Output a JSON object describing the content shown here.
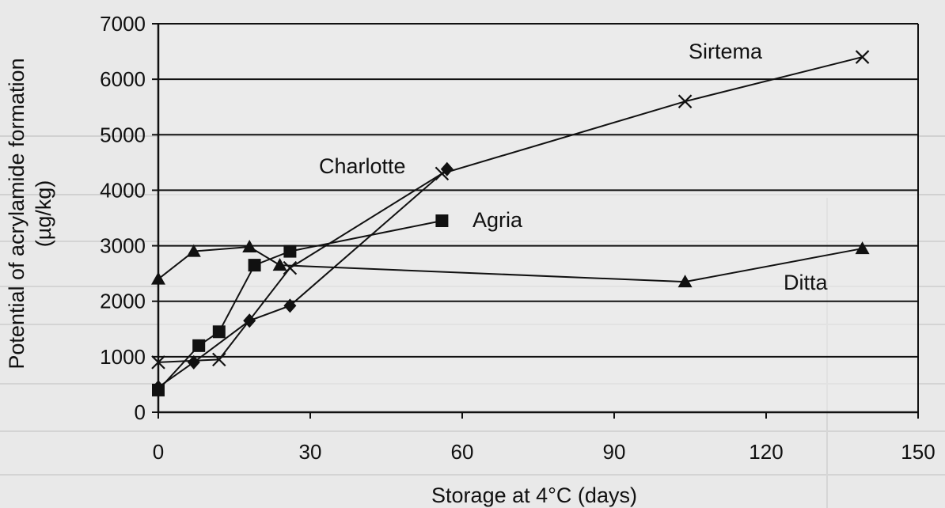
{
  "chart_data": {
    "type": "line",
    "xlabel": "Storage at 4°C (days)",
    "ylabel_line1": "Potential of acrylamide formation",
    "ylabel_line2": "(µg/kg)",
    "xlim": [
      0,
      150
    ],
    "ylim": [
      0,
      7000
    ],
    "xticks": [
      0,
      30,
      60,
      90,
      120,
      150
    ],
    "yticks": [
      0,
      1000,
      2000,
      3000,
      4000,
      5000,
      6000,
      7000
    ],
    "grid": "horizontal",
    "series": [
      {
        "name": "Sirtema",
        "marker": "x",
        "x": [
          0,
          12,
          26,
          56,
          104,
          139
        ],
        "y": [
          900,
          950,
          2600,
          4300,
          5600,
          6400
        ]
      },
      {
        "name": "Charlotte",
        "marker": "diamond",
        "x": [
          0,
          7,
          18,
          26,
          57
        ],
        "y": [
          450,
          900,
          1650,
          1920,
          4380
        ]
      },
      {
        "name": "Agria",
        "marker": "square",
        "x": [
          0,
          8,
          12,
          19,
          26,
          56
        ],
        "y": [
          400,
          1200,
          1450,
          2650,
          2900,
          3450
        ]
      },
      {
        "name": "Ditta",
        "marker": "triangle",
        "x": [
          0,
          7,
          18,
          24,
          104,
          139
        ],
        "y": [
          2400,
          2900,
          2980,
          2650,
          2350,
          2950
        ]
      }
    ]
  }
}
